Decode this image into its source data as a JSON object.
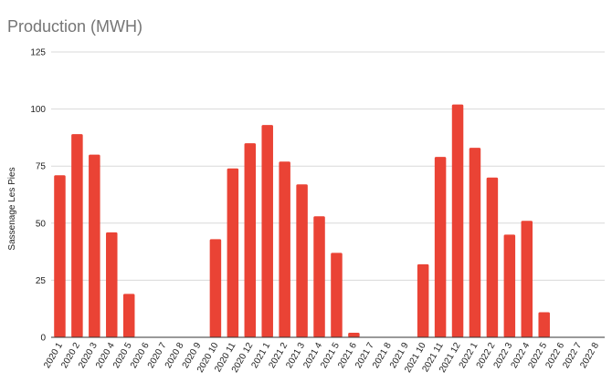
{
  "chart_data": {
    "type": "bar",
    "title": "Production (MWH)",
    "xlabel": "",
    "ylabel": "Sassenage Les Pies",
    "ylim": [
      0,
      125
    ],
    "yticks": [
      0,
      25,
      50,
      75,
      100,
      125
    ],
    "grid": true,
    "legend": "none",
    "bar_color": "#ea4335",
    "categories": [
      "2020 1",
      "2020 2",
      "2020 3",
      "2020 4",
      "2020 5",
      "2020 6",
      "2020 7",
      "2020 8",
      "2020 9",
      "2020 10",
      "2020 11",
      "2020 12",
      "2021 1",
      "2021 2",
      "2021 3",
      "2021 4",
      "2021 5",
      "2021 6",
      "2021 7",
      "2021 8",
      "2021 9",
      "2021 10",
      "2021 11",
      "2021 12",
      "2022 1",
      "2022 2",
      "2022 3",
      "2022 4",
      "2022 5",
      "2022 6",
      "2022 7",
      "2022 8"
    ],
    "values": [
      71,
      89,
      80,
      46,
      19,
      0,
      0,
      0,
      0,
      43,
      74,
      85,
      93,
      77,
      67,
      53,
      37,
      2,
      0,
      0,
      0,
      32,
      79,
      102,
      83,
      70,
      45,
      51,
      11,
      0,
      0,
      0
    ]
  }
}
